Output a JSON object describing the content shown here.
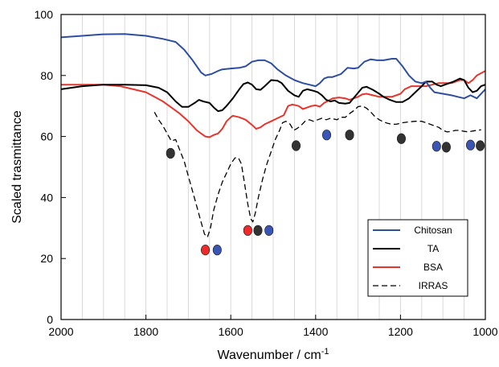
{
  "chart_data": {
    "type": "line",
    "xlabel": "Wavenumber / cm",
    "xlabel_superscript": "-1",
    "ylabel": "Scaled trasmittance",
    "xlim": [
      2000,
      1000
    ],
    "ylim": [
      0,
      100
    ],
    "x_ticks": [
      2000,
      1800,
      1600,
      1400,
      1200,
      1000
    ],
    "y_ticks": [
      0,
      20,
      40,
      60,
      80,
      100
    ],
    "x_gridlines": [
      1950,
      1900,
      1850,
      1800,
      1750,
      1700,
      1650,
      1600,
      1550,
      1500,
      1450,
      1400,
      1350,
      1300,
      1250,
      1200,
      1150,
      1100,
      1050
    ],
    "grid": "vertical",
    "legend_position": "bottom-right",
    "series": [
      {
        "name": "Chitosan",
        "color": "#2e4fa0",
        "dash": "solid",
        "points": [
          [
            2000,
            92.5
          ],
          [
            1950,
            93
          ],
          [
            1900,
            93.5
          ],
          [
            1850,
            93.6
          ],
          [
            1800,
            93
          ],
          [
            1760,
            92
          ],
          [
            1730,
            91
          ],
          [
            1710,
            88.5
          ],
          [
            1690,
            85
          ],
          [
            1670,
            81
          ],
          [
            1660,
            80
          ],
          [
            1645,
            80.5
          ],
          [
            1630,
            81.5
          ],
          [
            1620,
            82
          ],
          [
            1600,
            82.3
          ],
          [
            1580,
            82.5
          ],
          [
            1565,
            83
          ],
          [
            1550,
            84.5
          ],
          [
            1535,
            85
          ],
          [
            1520,
            85
          ],
          [
            1505,
            84
          ],
          [
            1490,
            82
          ],
          [
            1470,
            80
          ],
          [
            1450,
            78.5
          ],
          [
            1440,
            78
          ],
          [
            1430,
            77.5
          ],
          [
            1415,
            77
          ],
          [
            1400,
            76.5
          ],
          [
            1390,
            77.5
          ],
          [
            1380,
            79
          ],
          [
            1370,
            79.5
          ],
          [
            1360,
            79.5
          ],
          [
            1340,
            80.5
          ],
          [
            1325,
            82.5
          ],
          [
            1310,
            82.3
          ],
          [
            1300,
            82.5
          ],
          [
            1285,
            84.5
          ],
          [
            1270,
            85.3
          ],
          [
            1255,
            85
          ],
          [
            1240,
            85
          ],
          [
            1220,
            85.5
          ],
          [
            1210,
            85.5
          ],
          [
            1195,
            83
          ],
          [
            1180,
            80
          ],
          [
            1165,
            78
          ],
          [
            1150,
            77.5
          ],
          [
            1140,
            78
          ],
          [
            1130,
            76
          ],
          [
            1120,
            74.5
          ],
          [
            1100,
            74
          ],
          [
            1080,
            73.5
          ],
          [
            1065,
            73
          ],
          [
            1050,
            72.5
          ],
          [
            1035,
            73.5
          ],
          [
            1020,
            72.5
          ],
          [
            1000,
            75.5
          ]
        ]
      },
      {
        "name": "TA",
        "color": "#000000",
        "dash": "solid",
        "points": [
          [
            2000,
            75.5
          ],
          [
            1950,
            76.5
          ],
          [
            1900,
            77
          ],
          [
            1850,
            77
          ],
          [
            1800,
            76.8
          ],
          [
            1770,
            76
          ],
          [
            1750,
            74.5
          ],
          [
            1730,
            71.5
          ],
          [
            1715,
            69.7
          ],
          [
            1700,
            69.7
          ],
          [
            1685,
            71
          ],
          [
            1675,
            72
          ],
          [
            1665,
            71.5
          ],
          [
            1650,
            71
          ],
          [
            1640,
            69.5
          ],
          [
            1630,
            68.3
          ],
          [
            1620,
            68.6
          ],
          [
            1610,
            70
          ],
          [
            1595,
            72.5
          ],
          [
            1580,
            75.5
          ],
          [
            1570,
            77.2
          ],
          [
            1560,
            77.7
          ],
          [
            1550,
            77
          ],
          [
            1540,
            75.5
          ],
          [
            1530,
            75.3
          ],
          [
            1520,
            76.5
          ],
          [
            1505,
            78.5
          ],
          [
            1490,
            78.3
          ],
          [
            1480,
            77.5
          ],
          [
            1465,
            75
          ],
          [
            1450,
            73.5
          ],
          [
            1440,
            73
          ],
          [
            1430,
            75
          ],
          [
            1420,
            75.5
          ],
          [
            1405,
            75
          ],
          [
            1395,
            74.5
          ],
          [
            1385,
            73.5
          ],
          [
            1375,
            72
          ],
          [
            1365,
            71.5
          ],
          [
            1355,
            71.8
          ],
          [
            1345,
            71
          ],
          [
            1330,
            70.8
          ],
          [
            1320,
            71
          ],
          [
            1305,
            73.5
          ],
          [
            1290,
            76
          ],
          [
            1280,
            76.3
          ],
          [
            1265,
            75.3
          ],
          [
            1250,
            74
          ],
          [
            1240,
            73
          ],
          [
            1225,
            72
          ],
          [
            1210,
            71.3
          ],
          [
            1195,
            71.3
          ],
          [
            1180,
            72.5
          ],
          [
            1165,
            74.5
          ],
          [
            1150,
            76.5
          ],
          [
            1140,
            78
          ],
          [
            1125,
            78
          ],
          [
            1115,
            77
          ],
          [
            1105,
            76.5
          ],
          [
            1095,
            77
          ],
          [
            1085,
            77.5
          ],
          [
            1075,
            78
          ],
          [
            1060,
            79
          ],
          [
            1050,
            78.5
          ],
          [
            1040,
            76
          ],
          [
            1030,
            74.5
          ],
          [
            1020,
            75
          ],
          [
            1010,
            76.5
          ],
          [
            1000,
            77
          ]
        ]
      },
      {
        "name": "BSA",
        "color": "#e8352c",
        "dash": "solid",
        "points": [
          [
            2000,
            77
          ],
          [
            1950,
            77
          ],
          [
            1900,
            77
          ],
          [
            1860,
            76.5
          ],
          [
            1830,
            75.5
          ],
          [
            1800,
            74.5
          ],
          [
            1780,
            73
          ],
          [
            1760,
            71.5
          ],
          [
            1740,
            69.5
          ],
          [
            1720,
            67.5
          ],
          [
            1700,
            65
          ],
          [
            1680,
            62
          ],
          [
            1670,
            61
          ],
          [
            1660,
            60
          ],
          [
            1650,
            59.8
          ],
          [
            1640,
            60.5
          ],
          [
            1630,
            61
          ],
          [
            1620,
            62.5
          ],
          [
            1610,
            65
          ],
          [
            1600,
            66.3
          ],
          [
            1595,
            66.8
          ],
          [
            1580,
            66.3
          ],
          [
            1565,
            65.5
          ],
          [
            1550,
            63.8
          ],
          [
            1540,
            62.5
          ],
          [
            1530,
            63
          ],
          [
            1520,
            64
          ],
          [
            1505,
            65
          ],
          [
            1490,
            66
          ],
          [
            1475,
            67
          ],
          [
            1465,
            70
          ],
          [
            1455,
            70.5
          ],
          [
            1440,
            70
          ],
          [
            1430,
            69
          ],
          [
            1420,
            69.5
          ],
          [
            1410,
            70
          ],
          [
            1400,
            70.2
          ],
          [
            1390,
            69.8
          ],
          [
            1380,
            71
          ],
          [
            1360,
            72.5
          ],
          [
            1345,
            72.8
          ],
          [
            1330,
            72.5
          ],
          [
            1320,
            72
          ],
          [
            1310,
            72.5
          ],
          [
            1300,
            73
          ],
          [
            1290,
            73.8
          ],
          [
            1280,
            74
          ],
          [
            1265,
            73.5
          ],
          [
            1250,
            73
          ],
          [
            1235,
            73
          ],
          [
            1220,
            73
          ],
          [
            1200,
            74
          ],
          [
            1190,
            75.5
          ],
          [
            1175,
            76.5
          ],
          [
            1160,
            76.5
          ],
          [
            1140,
            76.5
          ],
          [
            1125,
            77
          ],
          [
            1110,
            77.5
          ],
          [
            1100,
            77.5
          ],
          [
            1080,
            77.5
          ],
          [
            1060,
            78.5
          ],
          [
            1050,
            78.5
          ],
          [
            1040,
            77.5
          ],
          [
            1030,
            78.5
          ],
          [
            1020,
            80
          ],
          [
            1000,
            81.5
          ]
        ]
      },
      {
        "name": "IRRAS",
        "color": "#000000",
        "dash": "dashed",
        "points": [
          [
            1780,
            68
          ],
          [
            1770,
            65.5
          ],
          [
            1760,
            63.5
          ],
          [
            1750,
            61
          ],
          [
            1740,
            58.5
          ],
          [
            1730,
            59
          ],
          [
            1720,
            55.5
          ],
          [
            1710,
            52
          ],
          [
            1700,
            47
          ],
          [
            1690,
            42
          ],
          [
            1680,
            37
          ],
          [
            1670,
            32
          ],
          [
            1662,
            28
          ],
          [
            1655,
            27
          ],
          [
            1648,
            30
          ],
          [
            1640,
            36
          ],
          [
            1630,
            41
          ],
          [
            1620,
            45
          ],
          [
            1610,
            48
          ],
          [
            1600,
            51
          ],
          [
            1590,
            53
          ],
          [
            1582,
            53
          ],
          [
            1575,
            51
          ],
          [
            1568,
            45
          ],
          [
            1560,
            38
          ],
          [
            1553,
            33
          ],
          [
            1548,
            32
          ],
          [
            1542,
            35
          ],
          [
            1535,
            40
          ],
          [
            1525,
            46
          ],
          [
            1515,
            51
          ],
          [
            1505,
            55
          ],
          [
            1495,
            59
          ],
          [
            1485,
            62
          ],
          [
            1478,
            64.5
          ],
          [
            1470,
            65
          ],
          [
            1460,
            64
          ],
          [
            1452,
            62
          ],
          [
            1445,
            62.5
          ],
          [
            1435,
            63.5
          ],
          [
            1425,
            65
          ],
          [
            1415,
            65.5
          ],
          [
            1405,
            65
          ],
          [
            1395,
            65.5
          ],
          [
            1385,
            66
          ],
          [
            1375,
            65.5
          ],
          [
            1365,
            66
          ],
          [
            1350,
            65.5
          ],
          [
            1340,
            66.3
          ],
          [
            1330,
            66.3
          ],
          [
            1320,
            67.5
          ],
          [
            1310,
            68.5
          ],
          [
            1300,
            69.8
          ],
          [
            1290,
            70
          ],
          [
            1280,
            69.3
          ],
          [
            1270,
            68
          ],
          [
            1260,
            66.5
          ],
          [
            1250,
            65.5
          ],
          [
            1240,
            64.8
          ],
          [
            1230,
            64.3
          ],
          [
            1220,
            64
          ],
          [
            1210,
            64
          ],
          [
            1195,
            64.5
          ],
          [
            1180,
            64.8
          ],
          [
            1165,
            65
          ],
          [
            1150,
            65
          ],
          [
            1140,
            64.5
          ],
          [
            1130,
            64
          ],
          [
            1120,
            63.5
          ],
          [
            1110,
            63
          ],
          [
            1100,
            62
          ],
          [
            1090,
            61.5
          ],
          [
            1080,
            61.7
          ],
          [
            1070,
            62
          ],
          [
            1060,
            62
          ],
          [
            1050,
            61.7
          ],
          [
            1040,
            61.5
          ],
          [
            1030,
            61.8
          ],
          [
            1020,
            62
          ],
          [
            1010,
            62.2
          ]
        ]
      }
    ],
    "markers": [
      {
        "x": 1742,
        "y": 54.5,
        "color": "#333333"
      },
      {
        "x": 1660,
        "y": 22.8,
        "color": "#f02a2a"
      },
      {
        "x": 1632,
        "y": 22.8,
        "color": "#3b55b5"
      },
      {
        "x": 1560,
        "y": 29.2,
        "color": "#f02a2a"
      },
      {
        "x": 1536,
        "y": 29.2,
        "color": "#333333"
      },
      {
        "x": 1510,
        "y": 29.2,
        "color": "#3b55b5"
      },
      {
        "x": 1446,
        "y": 57.0,
        "color": "#333333"
      },
      {
        "x": 1374,
        "y": 60.5,
        "color": "#3b55b5"
      },
      {
        "x": 1320,
        "y": 60.5,
        "color": "#333333"
      },
      {
        "x": 1198,
        "y": 59.3,
        "color": "#333333"
      },
      {
        "x": 1115,
        "y": 56.8,
        "color": "#3b55b5"
      },
      {
        "x": 1092,
        "y": 56.5,
        "color": "#333333"
      },
      {
        "x": 1035,
        "y": 57.2,
        "color": "#3b55b5"
      },
      {
        "x": 1012,
        "y": 57.0,
        "color": "#333333"
      }
    ]
  }
}
